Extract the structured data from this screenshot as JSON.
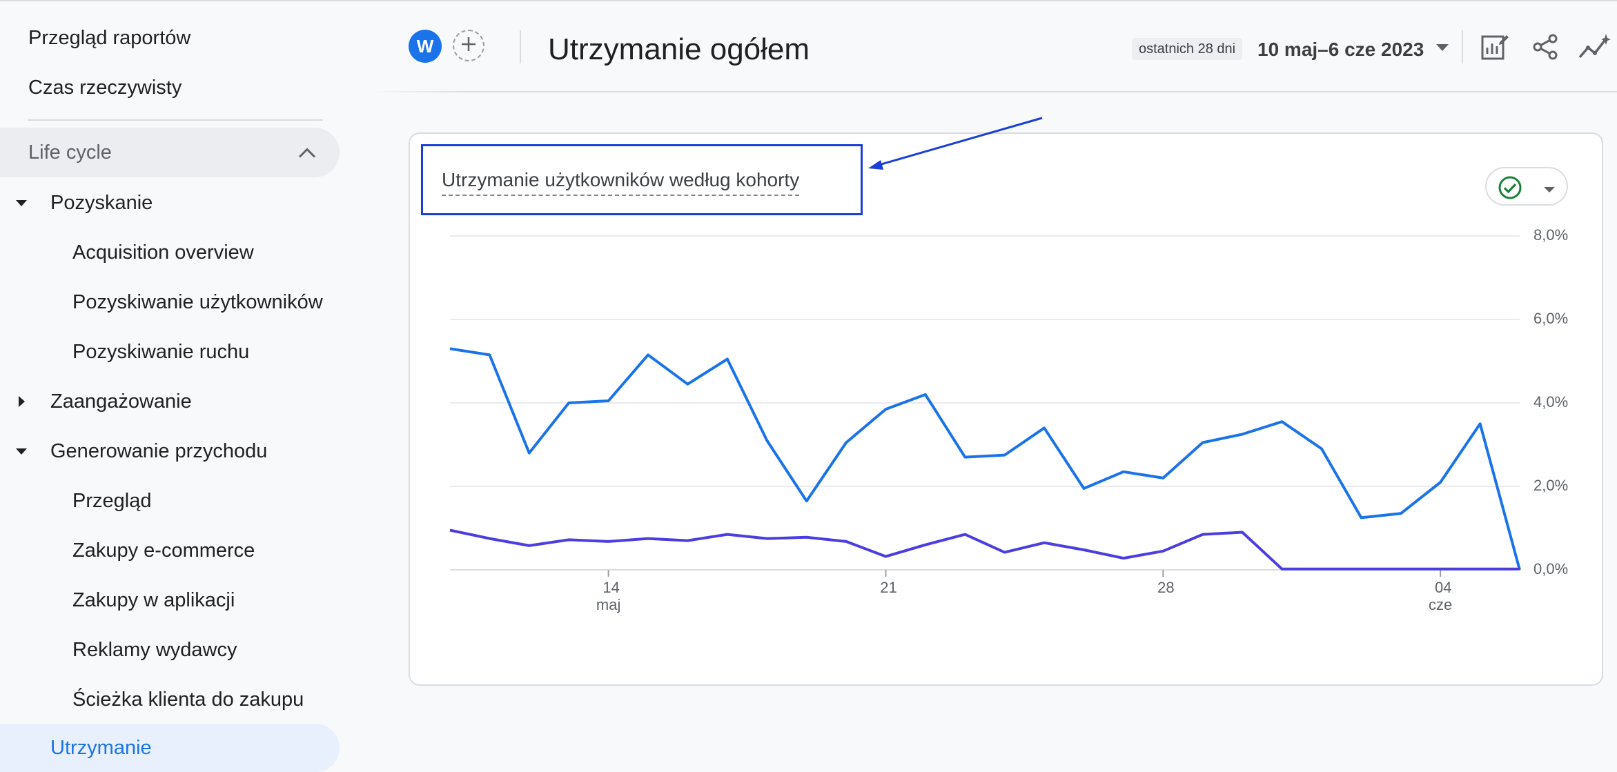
{
  "sidebar": {
    "items": [
      {
        "label": "Przegląd raportów"
      },
      {
        "label": "Czas rzeczywisty"
      }
    ],
    "section": {
      "label": "Life cycle"
    },
    "groups": [
      {
        "label": "Pozyskanie",
        "children": [
          "Acquisition overview",
          "Pozyskiwanie użytkowników",
          "Pozyskiwanie ruchu"
        ]
      },
      {
        "label": "Zaangażowanie"
      },
      {
        "label": "Generowanie przychodu",
        "children": [
          "Przegląd",
          "Zakupy e-commerce",
          "Zakupy w aplikacji",
          "Reklamy wydawcy",
          "Ścieżka klienta do zakupu"
        ]
      }
    ],
    "active": "Utrzymanie"
  },
  "header": {
    "avatar_letter": "W",
    "title": "Utrzymanie ogółem",
    "date_chip": "ostatnich 28 dni",
    "date_range": "10 maj–6 cze 2023"
  },
  "icons": {
    "add": "plus-icon",
    "edit": "edit-report-icon",
    "share": "share-icon",
    "insights": "insights-icon",
    "status": "check-circle-icon",
    "dropdown": "caret-down-icon",
    "collapse": "chevron-up-icon"
  },
  "colors": {
    "accent": "#1a73e8",
    "series1": "#1a73e8",
    "series2": "#4b3de0",
    "highlight": "#1a3fd6",
    "ok": "#188038"
  },
  "card": {
    "title": "Utrzymanie użytkowników według kohorty"
  },
  "chart_data": {
    "type": "line",
    "y_axis_position": "right",
    "ylim": [
      0,
      8
    ],
    "y_ticks": [
      "8,0%",
      "6,0%",
      "4,0%",
      "2,0%",
      "0,0%"
    ],
    "y_tick_values": [
      8,
      6,
      4,
      2,
      0
    ],
    "x_ticks": [
      {
        "index": 4,
        "label": "14",
        "sub": "maj"
      },
      {
        "index": 11,
        "label": "21",
        "sub": ""
      },
      {
        "index": 18,
        "label": "28",
        "sub": ""
      },
      {
        "index": 25,
        "label": "04",
        "sub": "cze"
      }
    ],
    "x": [
      "2023-05-10",
      "2023-05-11",
      "2023-05-12",
      "2023-05-13",
      "2023-05-14",
      "2023-05-15",
      "2023-05-16",
      "2023-05-17",
      "2023-05-18",
      "2023-05-19",
      "2023-05-20",
      "2023-05-21",
      "2023-05-22",
      "2023-05-23",
      "2023-05-24",
      "2023-05-25",
      "2023-05-26",
      "2023-05-27",
      "2023-05-28",
      "2023-05-29",
      "2023-05-30",
      "2023-05-31",
      "2023-06-01",
      "2023-06-02",
      "2023-06-03",
      "2023-06-04",
      "2023-06-05",
      "2023-06-06"
    ],
    "series": [
      {
        "values": [
          5.3,
          5.15,
          2.8,
          4.0,
          4.05,
          5.15,
          4.45,
          5.05,
          3.1,
          1.65,
          3.05,
          3.85,
          4.2,
          2.7,
          2.75,
          3.4,
          1.95,
          2.35,
          2.2,
          3.05,
          3.25,
          3.55,
          2.9,
          1.25,
          1.35,
          2.1,
          3.5,
          0.0
        ]
      },
      {
        "values": [
          0.95,
          0.75,
          0.58,
          0.72,
          0.68,
          0.75,
          0.7,
          0.85,
          0.75,
          0.78,
          0.68,
          0.32,
          0.6,
          0.85,
          0.42,
          0.65,
          0.48,
          0.28,
          0.45,
          0.85,
          0.9,
          0.02,
          0.02,
          0.02,
          0.02,
          0.02,
          0.02,
          0.02
        ]
      }
    ]
  }
}
